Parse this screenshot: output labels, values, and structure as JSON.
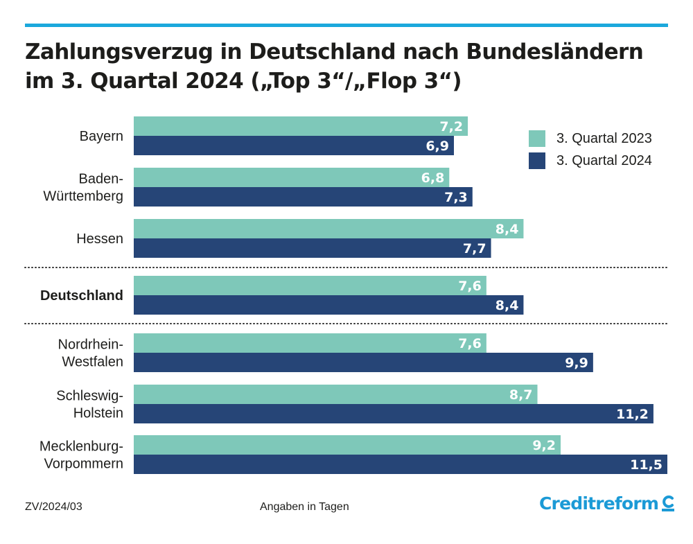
{
  "title_line1": "Zahlungsverzug in Deutschland nach Bundesländern",
  "title_line2": "im 3. Quartal 2024 („Top 3“/„Flop 3“)",
  "footer": {
    "code": "ZV/2024/03",
    "note": "Angaben in Tagen"
  },
  "logo": {
    "text": "Creditreform",
    "icon": "creditreform-c-icon"
  },
  "colors": {
    "accent_line": "#1ba8dc",
    "series_2023": "#7ec8b9",
    "series_2024": "#264577",
    "logo": "#1b9ad6",
    "text": "#1d1d1b"
  },
  "chart_data": {
    "type": "bar",
    "orientation": "horizontal",
    "categories": [
      [
        "Bayern"
      ],
      [
        "Baden-",
        "Württemberg"
      ],
      [
        "Hessen"
      ],
      [
        "Deutschland"
      ],
      [
        "Nordrhein-",
        "Westfalen"
      ],
      [
        "Schleswig-",
        "Holstein"
      ],
      [
        "Mecklenburg-",
        "Vorpommern"
      ]
    ],
    "highlight_category": "Deutschland",
    "series": [
      {
        "name": "3. Quartal 2023",
        "values": [
          7.2,
          6.8,
          8.4,
          7.6,
          7.6,
          8.7,
          9.2
        ],
        "labels": [
          "7,2",
          "6,8",
          "8,4",
          "7,6",
          "7,6",
          "8,7",
          "9,2"
        ]
      },
      {
        "name": "3. Quartal 2024",
        "values": [
          6.9,
          7.3,
          7.7,
          8.4,
          9.9,
          11.2,
          11.5
        ],
        "labels": [
          "6,9",
          "7,3",
          "7,7",
          "8,4",
          "9,9",
          "11,2",
          "11,5"
        ]
      }
    ],
    "xlim": [
      0,
      11.5
    ],
    "unit": "Tage",
    "legend_position": "top-right",
    "grid": false,
    "separators": "dotted lines above and below Deutschland"
  }
}
